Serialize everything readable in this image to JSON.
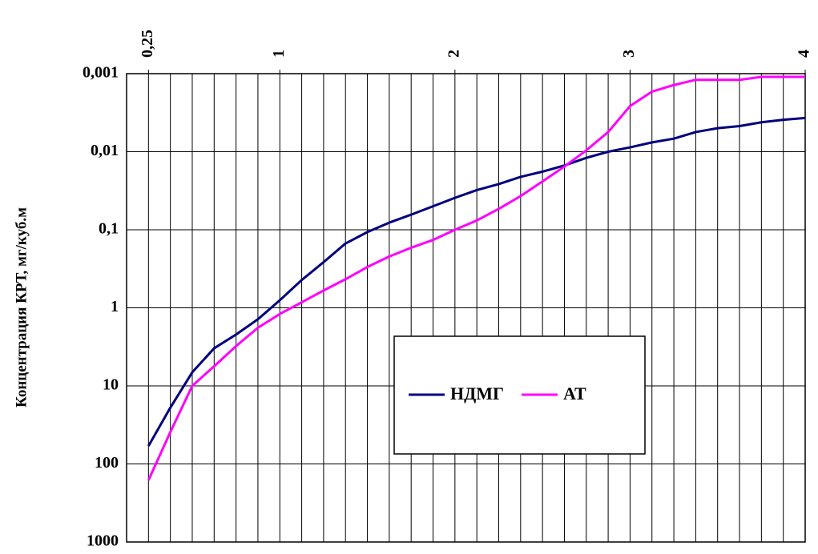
{
  "chart_data": {
    "type": "line",
    "y_label": "Концентрация КРТ, мг/куб.м",
    "x": [
      0.25,
      0.375,
      0.5,
      0.625,
      0.75,
      0.875,
      1,
      1.125,
      1.25,
      1.375,
      1.5,
      1.625,
      1.75,
      1.875,
      2,
      2.125,
      2.25,
      2.375,
      2.5,
      2.625,
      2.75,
      2.875,
      3,
      3.125,
      3.25,
      3.375,
      3.5,
      3.625,
      3.75,
      3.875,
      4
    ],
    "series": [
      {
        "name": "НДМГ",
        "color": "#000080",
        "values": [
          59,
          19,
          6.7,
          3.3,
          2.2,
          1.4,
          0.8,
          0.44,
          0.26,
          0.15,
          0.107,
          0.081,
          0.064,
          0.05,
          0.039,
          0.031,
          0.026,
          0.021,
          0.018,
          0.015,
          0.012,
          0.01,
          0.0088,
          0.0076,
          0.0068,
          0.0056,
          0.005,
          0.0047,
          0.0042,
          0.0039,
          0.0037
        ]
      },
      {
        "name": "АТ",
        "color": "#ff00ff",
        "values": [
          162,
          39,
          10,
          5.6,
          3.1,
          1.8,
          1.2,
          0.85,
          0.6,
          0.43,
          0.3,
          0.22,
          0.17,
          0.135,
          0.1,
          0.076,
          0.054,
          0.037,
          0.024,
          0.0155,
          0.0096,
          0.0056,
          0.0026,
          0.0017,
          0.0014,
          0.0012,
          0.0012,
          0.0012,
          0.0011,
          0.0011,
          0.0011
        ]
      }
    ],
    "xlim": [
      0.125,
      4
    ],
    "xticks": [
      {
        "value": 0.25,
        "label": "0,25"
      },
      1,
      2,
      3,
      4
    ],
    "ylim": [
      1000,
      0.001
    ],
    "yticks": [
      {
        "value": 0.001,
        "label": "0,001"
      },
      {
        "value": 0.01,
        "label": "0,01"
      },
      {
        "value": 0.1,
        "label": "0,1"
      },
      1,
      10,
      100,
      1000
    ],
    "y_log": true,
    "grid": true
  }
}
